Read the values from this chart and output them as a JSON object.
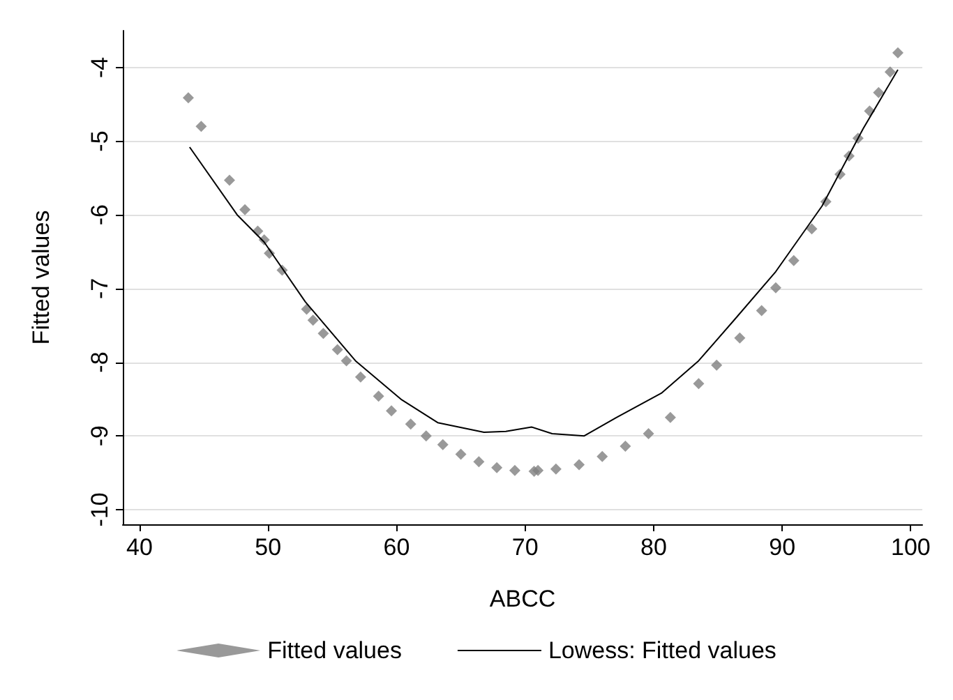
{
  "chart_data": {
    "type": "scatter",
    "xlabel": "ABCC",
    "ylabel": "Fitted values",
    "xlim": [
      38.7,
      100.9
    ],
    "ylim": [
      -10.2,
      -3.5
    ],
    "xticks": [
      40,
      50,
      60,
      70,
      80,
      90,
      100
    ],
    "yticks": [
      -10,
      -9,
      -8,
      -7,
      -6,
      -5,
      -4
    ],
    "grid": "y",
    "legend": "bottom",
    "series": [
      {
        "name": "Fitted values",
        "marker": "diamond",
        "color": "#808080",
        "x": [
          43.8,
          44.8,
          47.0,
          48.2,
          49.2,
          49.7,
          50.1,
          51.1,
          53.0,
          53.5,
          54.3,
          55.4,
          56.1,
          57.2,
          58.6,
          59.6,
          61.1,
          62.3,
          63.6,
          65.0,
          66.4,
          67.8,
          69.2,
          70.7,
          71.0,
          72.4,
          74.2,
          76.0,
          77.8,
          79.6,
          81.3,
          83.5,
          84.9,
          86.7,
          88.4,
          89.5,
          90.9,
          92.3,
          93.4,
          94.5,
          95.2,
          95.9,
          96.8,
          97.5,
          98.4,
          99.0
        ],
        "values": [
          -4.41,
          -4.8,
          -5.53,
          -5.93,
          -6.22,
          -6.34,
          -6.52,
          -6.75,
          -7.28,
          -7.43,
          -7.61,
          -7.83,
          -7.98,
          -8.2,
          -8.46,
          -8.66,
          -8.84,
          -9.0,
          -9.12,
          -9.25,
          -9.35,
          -9.43,
          -9.47,
          -9.48,
          -9.47,
          -9.45,
          -9.39,
          -9.28,
          -9.14,
          -8.97,
          -8.75,
          -8.29,
          -8.04,
          -7.67,
          -7.3,
          -6.99,
          -6.62,
          -6.19,
          -5.82,
          -5.45,
          -5.2,
          -4.96,
          -4.59,
          -4.34,
          -4.06,
          -3.8
        ]
      },
      {
        "name": "Lowess: Fitted values",
        "type": "line",
        "marker": "none",
        "line_style": "solid",
        "color": "#000000",
        "x": [
          43.9,
          47.6,
          49.7,
          52.9,
          56.8,
          60.4,
          63.2,
          66.8,
          68.5,
          70.5,
          72.1,
          74.6,
          77.1,
          80.6,
          83.5,
          86.3,
          89.5,
          93.1,
          96.3,
          99.0
        ],
        "values": [
          -5.08,
          -6.0,
          -6.37,
          -7.18,
          -7.98,
          -8.51,
          -8.82,
          -8.95,
          -8.94,
          -8.88,
          -8.97,
          -9.0,
          -8.75,
          -8.42,
          -7.98,
          -7.42,
          -6.77,
          -5.88,
          -4.83,
          -4.03
        ]
      }
    ]
  }
}
